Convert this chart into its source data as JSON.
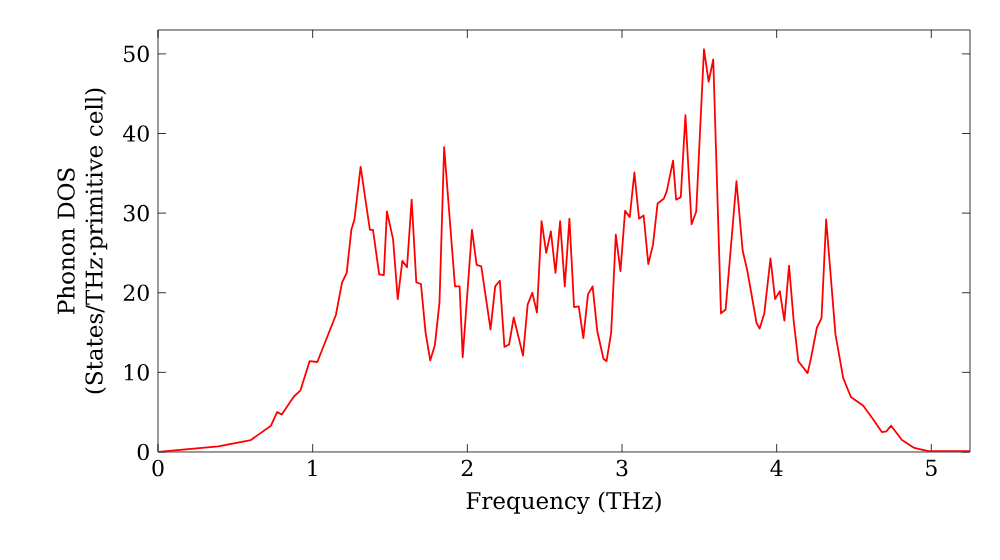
{
  "chart_data": {
    "type": "line",
    "xlabel": "Frequency (THz)",
    "ylabel": "Phonon DOS (States/THz·primitive cell)",
    "color": "#ff0000",
    "xlim": [
      0,
      5.25
    ],
    "ylim": [
      0,
      53
    ],
    "xticks": [
      0,
      1,
      2,
      3,
      4,
      5
    ],
    "yticks": [
      0,
      10,
      20,
      30,
      40,
      50
    ],
    "grid": false,
    "marker": "none",
    "line_style": "solid",
    "x": [
      0,
      0.39,
      0.6,
      0.73,
      0.77,
      0.8,
      0.88,
      0.92,
      0.98,
      1.03,
      1.15,
      1.19,
      1.22,
      1.25,
      1.27,
      1.31,
      1.37,
      1.39,
      1.43,
      1.46,
      1.48,
      1.52,
      1.55,
      1.58,
      1.61,
      1.64,
      1.67,
      1.7,
      1.73,
      1.76,
      1.79,
      1.82,
      1.85,
      1.92,
      1.95,
      1.97,
      2.03,
      2.06,
      2.09,
      2.15,
      2.18,
      2.21,
      2.24,
      2.27,
      2.3,
      2.36,
      2.39,
      2.42,
      2.45,
      2.48,
      2.51,
      2.54,
      2.57,
      2.6,
      2.63,
      2.66,
      2.69,
      2.72,
      2.75,
      2.78,
      2.81,
      2.84,
      2.88,
      2.9,
      2.93,
      2.96,
      2.99,
      3.02,
      3.05,
      3.08,
      3.11,
      3.14,
      3.17,
      3.2,
      3.23,
      3.27,
      3.29,
      3.33,
      3.35,
      3.38,
      3.41,
      3.45,
      3.48,
      3.53,
      3.56,
      3.59,
      3.64,
      3.67,
      3.74,
      3.78,
      3.81,
      3.87,
      3.89,
      3.92,
      3.96,
      3.99,
      4.02,
      4.05,
      4.08,
      4.11,
      4.14,
      4.2,
      4.22,
      4.26,
      4.29,
      4.32,
      4.38,
      4.43,
      4.48,
      4.56,
      4.62,
      4.68,
      4.71,
      4.74,
      4.81,
      4.89,
      4.98,
      5.25
    ],
    "values": [
      0,
      0.7,
      1.5,
      3.3,
      5,
      4.7,
      7,
      7.7,
      11.4,
      11.3,
      17.2,
      21.3,
      22.5,
      27.9,
      29.2,
      35.8,
      27.9,
      27.9,
      22.3,
      22.2,
      30.2,
      26.7,
      19.2,
      24,
      23.2,
      31.7,
      21.3,
      21.1,
      15,
      11.5,
      13.4,
      18.8,
      38.3,
      20.8,
      20.8,
      11.9,
      27.9,
      23.5,
      23.3,
      15.4,
      20.8,
      21.5,
      13.2,
      13.5,
      16.9,
      12.1,
      18.5,
      20,
      17.5,
      29,
      25,
      27.7,
      22.5,
      29,
      20.8,
      29.3,
      18.2,
      18.3,
      14.3,
      19.8,
      20.8,
      15.2,
      11.7,
      11.4,
      15,
      27.3,
      22.7,
      30.3,
      29.5,
      35.1,
      29.3,
      29.7,
      23.6,
      26,
      31.2,
      31.8,
      32.8,
      36.6,
      31.7,
      32,
      42.3,
      28.6,
      30.2,
      50.6,
      46.5,
      49.3,
      17.4,
      17.9,
      34,
      25.3,
      22.8,
      16.2,
      15.5,
      17.4,
      24.3,
      19.2,
      20.2,
      16.5,
      23.4,
      16.5,
      11.4,
      9.9,
      11.6,
      15.6,
      16.8,
      29.2,
      14.8,
      9.3,
      6.9,
      5.8,
      4.2,
      2.5,
      2.6,
      3.3,
      1.5,
      0.5,
      0.1,
      0.1
    ]
  }
}
